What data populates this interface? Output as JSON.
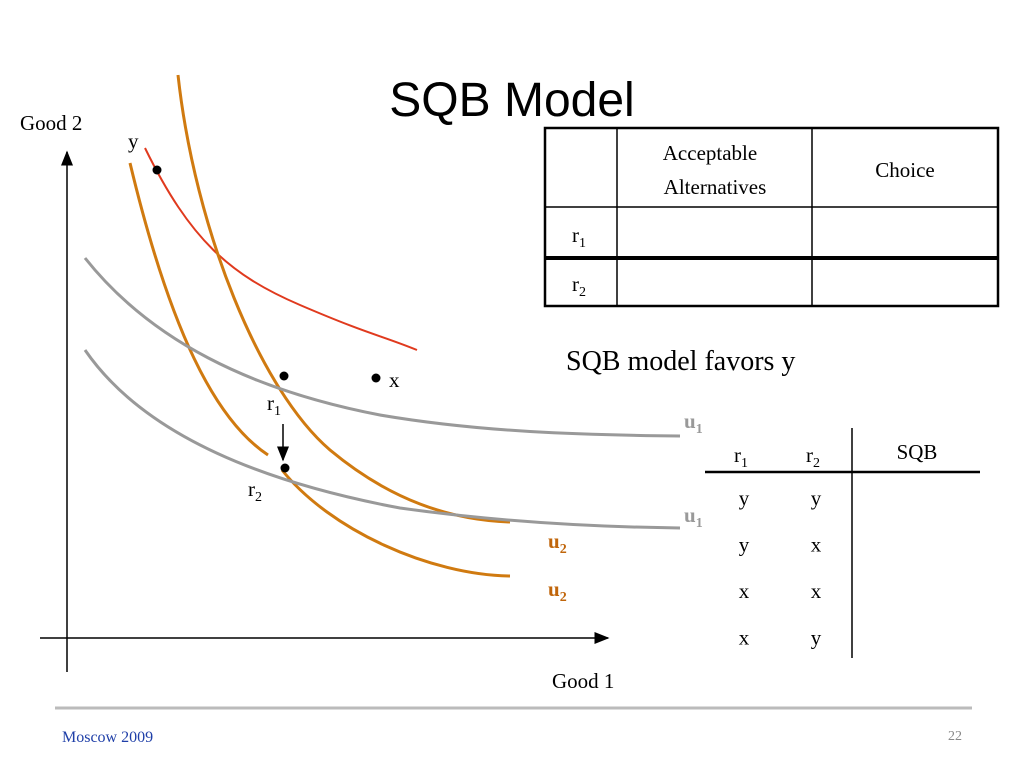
{
  "title": "SQB Model",
  "graph": {
    "y_axis_label": "Good 2",
    "x_axis_label": "Good 1",
    "points": [
      {
        "label": "y"
      },
      {
        "label": "x"
      }
    ],
    "reference_points": [
      {
        "base": "r",
        "sub": "1"
      },
      {
        "base": "r",
        "sub": "2"
      }
    ],
    "gray_curve_labels": [
      {
        "base": "u",
        "sub": "1"
      },
      {
        "base": "u",
        "sub": "1"
      }
    ],
    "orange_curve_labels": [
      {
        "base": "u",
        "sub": "2"
      },
      {
        "base": "u",
        "sub": "2"
      }
    ]
  },
  "choice_table": {
    "header": {
      "alternatives": [
        "Acceptable",
        "Alternatives"
      ],
      "choice": "Choice"
    },
    "rows": [
      {
        "base": "r",
        "sub": "1"
      },
      {
        "base": "r",
        "sub": "2"
      }
    ]
  },
  "note": "SQB model favors y",
  "sqb_table": {
    "header": [
      {
        "base": "r",
        "sub": "1"
      },
      {
        "base": "r",
        "sub": "2"
      },
      "SQB"
    ],
    "rows": [
      [
        "y",
        "y"
      ],
      [
        "y",
        "x"
      ],
      [
        "x",
        "x"
      ],
      [
        "x",
        "y"
      ]
    ]
  },
  "footer": {
    "left": "Moscow 2009",
    "page": 22
  }
}
